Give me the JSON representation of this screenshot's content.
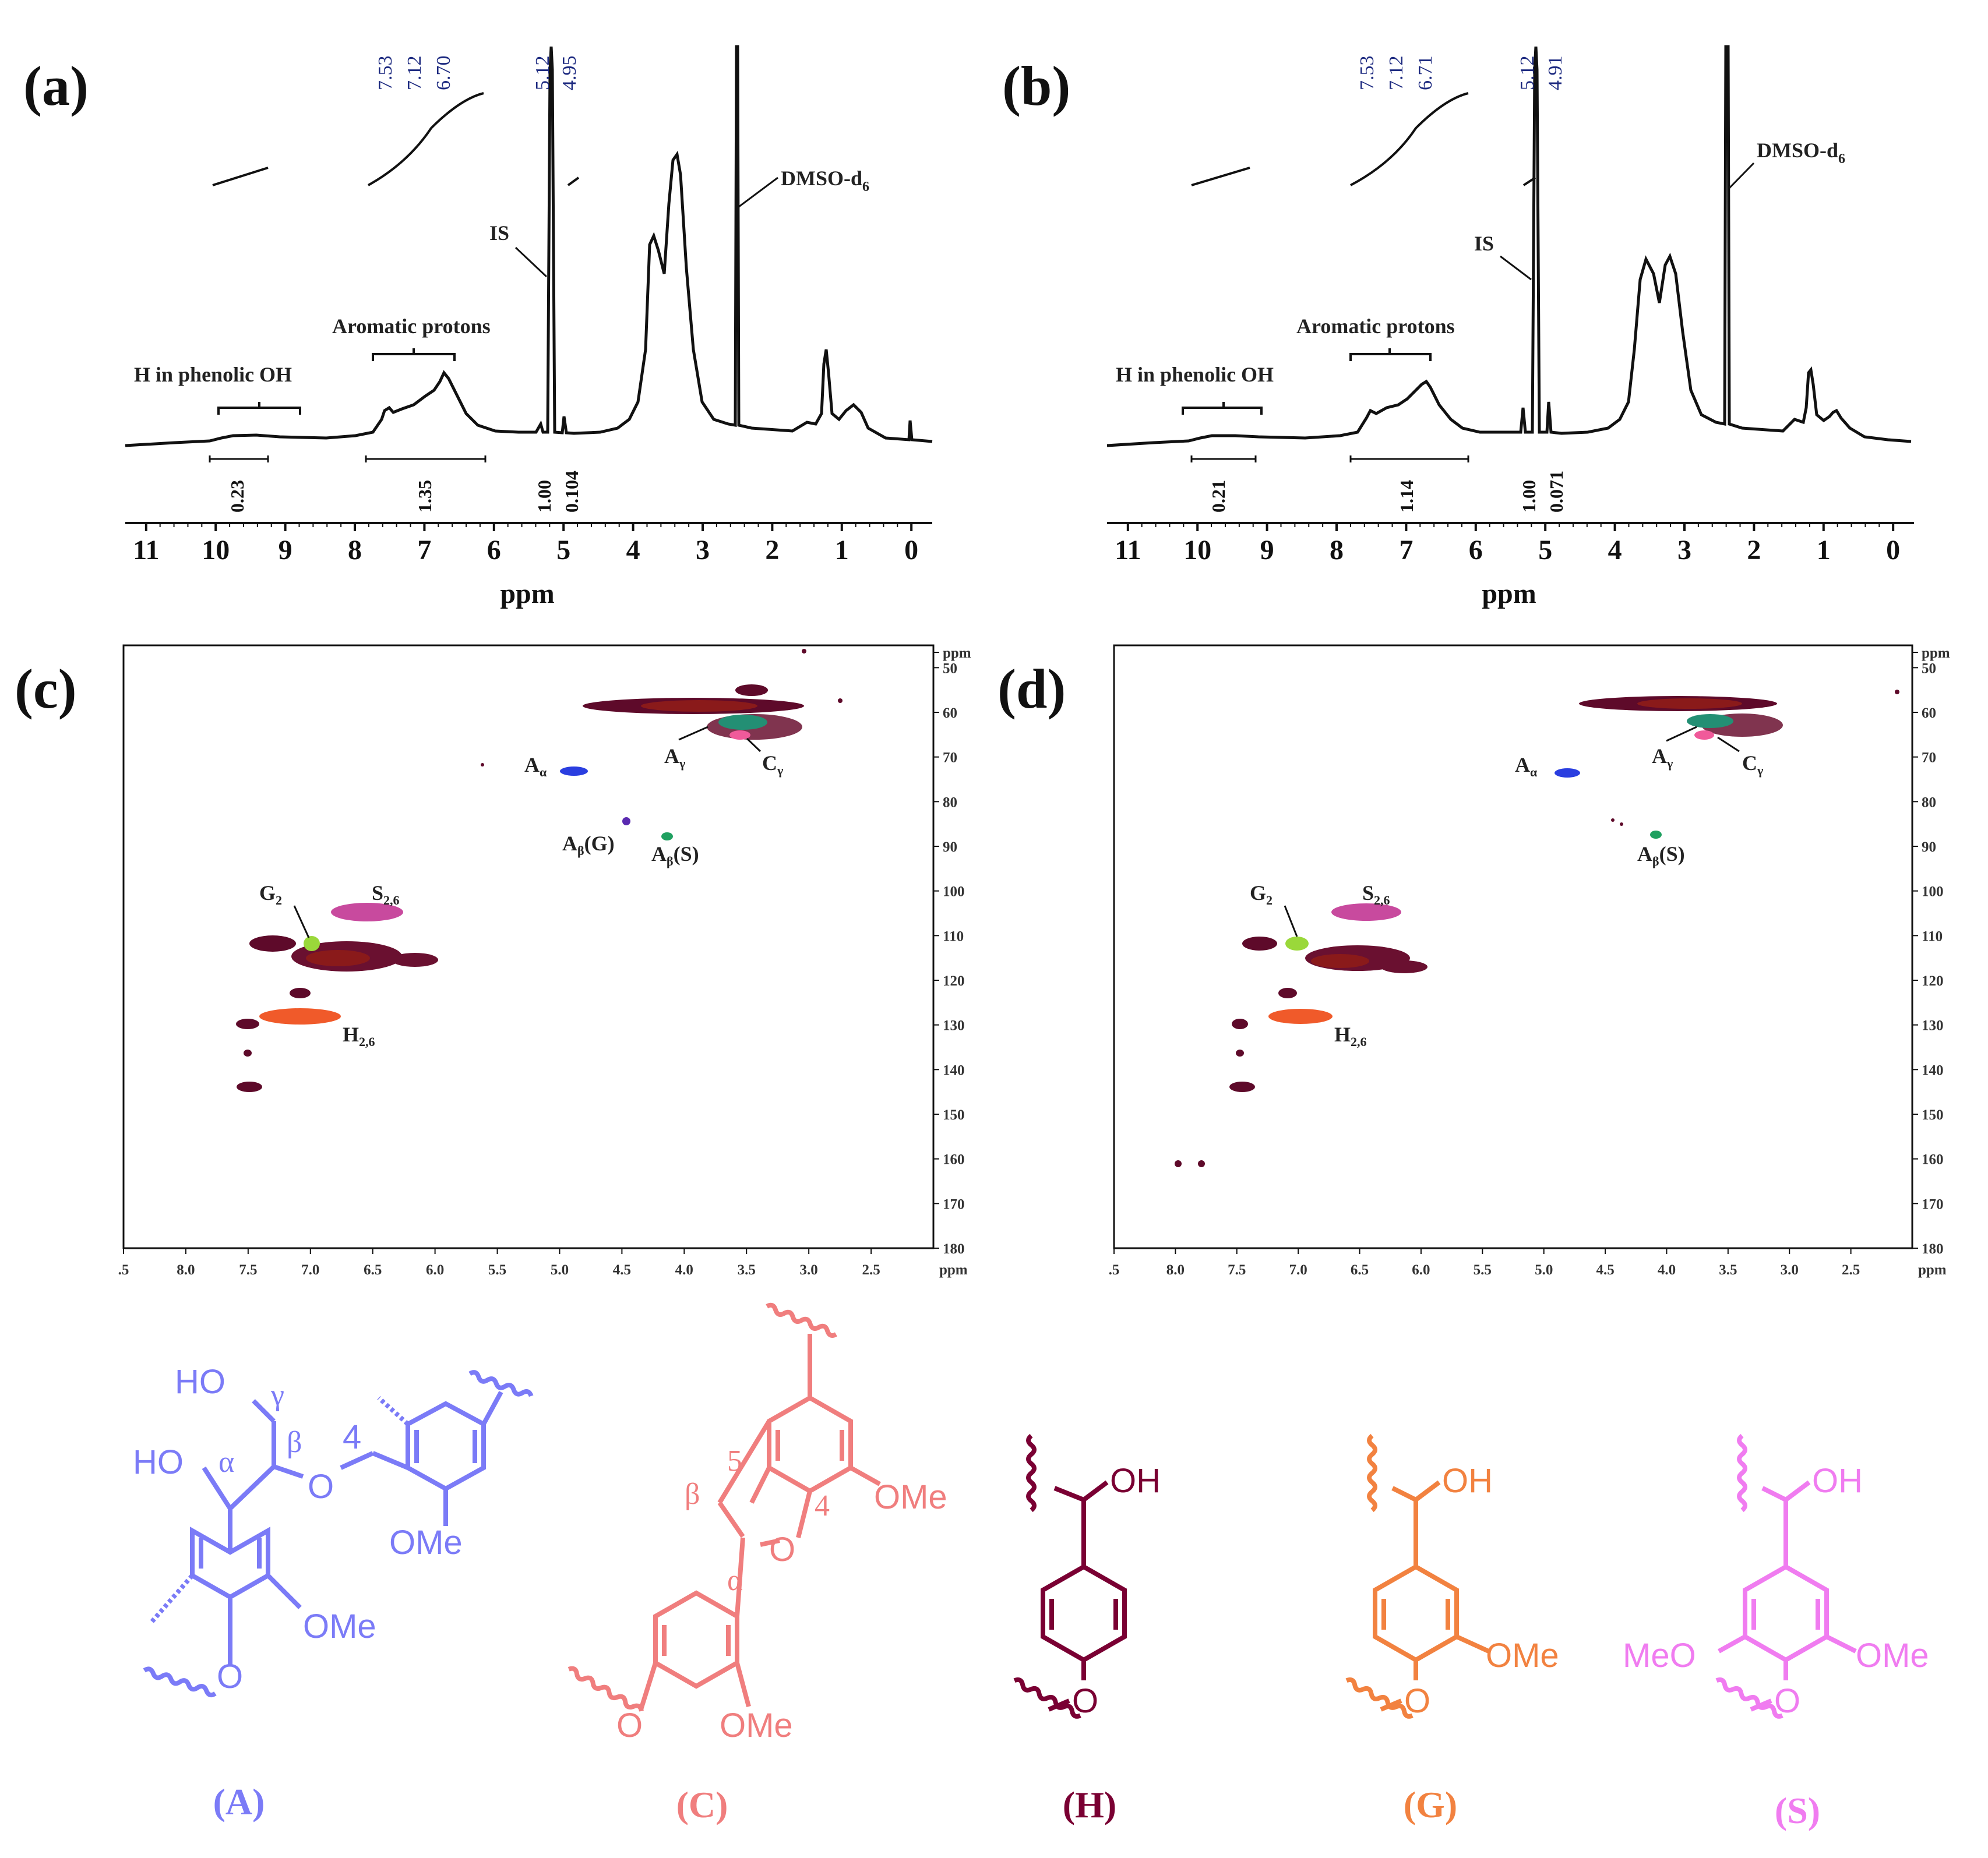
{
  "colors": {
    "A": "#7b7bf7",
    "C": "#f07e7e",
    "H": "#7a0033",
    "G": "#f28240",
    "S": "#f07cf0",
    "maroon": "#5a0a25",
    "peaklabel": "#1d2a80"
  },
  "panels": {
    "a": {
      "label": "(a)"
    },
    "b": {
      "label": "(b)"
    },
    "c": {
      "label": "(c)"
    },
    "d": {
      "label": "(d)"
    }
  },
  "chart_data": [
    {
      "type": "line",
      "panel": "(a)",
      "xlabel": "ppm",
      "x_ticks": [
        "11",
        "10",
        "9",
        "8",
        "7",
        "6",
        "5",
        "4",
        "3",
        "2",
        "1",
        "0"
      ],
      "xlim": [
        11.3,
        -0.3
      ],
      "peak_labels": [
        "7.53",
        "7.12",
        "6.70",
        "5.12",
        "4.95"
      ],
      "annotations": [
        "H in phenolic OH",
        "Aromatic protons",
        "IS",
        "DMSO-d6"
      ],
      "integrals": [
        {
          "value": "0.23",
          "range_ppm": [
            10,
            8.8
          ]
        },
        {
          "value": "1.35",
          "range_ppm": [
            7.8,
            6.1
          ]
        },
        {
          "value": "1.00",
          "range_ppm": [
            5.18,
            5.05
          ]
        },
        {
          "value": "0.104",
          "range_ppm": [
            5.0,
            4.9
          ]
        }
      ]
    },
    {
      "type": "line",
      "panel": "(b)",
      "xlabel": "ppm",
      "x_ticks": [
        "11",
        "10",
        "9",
        "8",
        "7",
        "6",
        "5",
        "4",
        "3",
        "2",
        "1",
        "0"
      ],
      "xlim": [
        11.3,
        -0.3
      ],
      "peak_labels": [
        "7.53",
        "7.12",
        "6.71",
        "5.12",
        "4.91"
      ],
      "annotations": [
        "H in phenolic OH",
        "Aromatic protons",
        "IS",
        "DMSO-d6"
      ],
      "integrals": [
        {
          "value": "0.21",
          "range_ppm": [
            10,
            9.1
          ]
        },
        {
          "value": "1.14",
          "range_ppm": [
            7.8,
            6.1
          ]
        },
        {
          "value": "1.00",
          "range_ppm": [
            5.18,
            5.05
          ]
        },
        {
          "value": "0.071",
          "range_ppm": [
            5.0,
            4.9
          ]
        }
      ]
    },
    {
      "type": "heatmap",
      "panel": "(c)",
      "x_ticks": [
        ".5",
        "8.0",
        "7.5",
        "7.0",
        "6.5",
        "6.0",
        "5.5",
        "5.0",
        "4.5",
        "4.0",
        "3.5",
        "3.0",
        "2.5",
        "ppm"
      ],
      "y_ticks": [
        "ppm",
        "50",
        "60",
        "70",
        "80",
        "90",
        "100",
        "110",
        "120",
        "130",
        "140",
        "150",
        "160",
        "170",
        "180"
      ],
      "xlim": [
        8.5,
        2.0
      ],
      "ylim": [
        45,
        180
      ],
      "cross_peaks": [
        {
          "label": "Aα",
          "x": 4.8,
          "y": 72
        },
        {
          "label": "Aγ",
          "x": 3.5,
          "y": 60
        },
        {
          "label": "Cγ",
          "x": 3.5,
          "y": 63
        },
        {
          "label": "Aβ(G)",
          "x": 4.4,
          "y": 83
        },
        {
          "label": "Aβ(S)",
          "x": 4.1,
          "y": 86
        },
        {
          "label": "G2",
          "x": 6.98,
          "y": 111
        },
        {
          "label": "S2,6",
          "x": 6.6,
          "y": 104
        },
        {
          "label": "H2,6",
          "x": 7.1,
          "y": 128
        }
      ]
    },
    {
      "type": "heatmap",
      "panel": "(d)",
      "x_ticks": [
        ".5",
        "8.0",
        "7.5",
        "7.0",
        "6.5",
        "6.0",
        "5.5",
        "5.0",
        "4.5",
        "4.0",
        "3.5",
        "3.0",
        "2.5",
        "ppm"
      ],
      "y_ticks": [
        "ppm",
        "50",
        "60",
        "70",
        "80",
        "90",
        "100",
        "110",
        "120",
        "130",
        "140",
        "150",
        "160",
        "170",
        "180"
      ],
      "xlim": [
        8.5,
        2.0
      ],
      "ylim": [
        45,
        180
      ],
      "cross_peaks": [
        {
          "label": "Aα",
          "x": 4.8,
          "y": 72
        },
        {
          "label": "Aγ",
          "x": 3.5,
          "y": 60
        },
        {
          "label": "Cγ",
          "x": 3.5,
          "y": 63
        },
        {
          "label": "Aβ(S)",
          "x": 4.1,
          "y": 86
        },
        {
          "label": "G2",
          "x": 7.0,
          "y": 111
        },
        {
          "label": "S2,6",
          "x": 6.6,
          "y": 104
        },
        {
          "label": "H2,6",
          "x": 7.1,
          "y": 128
        }
      ]
    }
  ],
  "structures": {
    "A": {
      "label": "(A)",
      "texts": [
        "HO",
        "γ",
        "HO",
        "α",
        "β",
        "4",
        "O",
        "OMe",
        "OMe",
        "O"
      ]
    },
    "C": {
      "label": "(C)",
      "texts": [
        "5",
        "β",
        "4",
        "OMe",
        "O",
        "α",
        "O",
        "OMe"
      ]
    },
    "H": {
      "label": "(H)",
      "texts": [
        "OH",
        "O"
      ]
    },
    "G": {
      "label": "(G)",
      "texts": [
        "OH",
        "OMe",
        "O"
      ]
    },
    "S": {
      "label": "(S)",
      "texts": [
        "OH",
        "MeO",
        "OMe",
        "O"
      ]
    }
  }
}
